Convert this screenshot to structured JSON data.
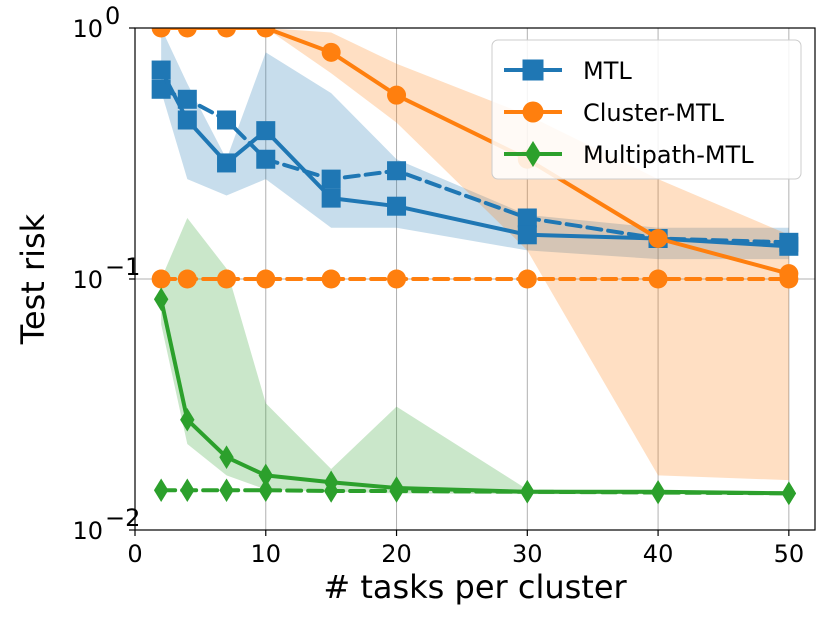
{
  "chart_data": {
    "type": "line",
    "xlabel": "# tasks per cluster",
    "ylabel": "Test risk",
    "xlim": [
      0,
      52
    ],
    "ylim": [
      0.01,
      1
    ],
    "yscale": "log",
    "xticks": [
      0,
      10,
      20,
      30,
      40,
      50
    ],
    "yticks": [
      {
        "value": 0.01,
        "base": "10",
        "exp": "−2"
      },
      {
        "value": 0.1,
        "base": "10",
        "exp": "−1"
      },
      {
        "value": 1,
        "base": "10",
        "exp": "0"
      }
    ],
    "grid": true,
    "legend_position": "top-right",
    "x": [
      2,
      4,
      7,
      10,
      15,
      20,
      30,
      40,
      50
    ],
    "series": [
      {
        "name": "MTL",
        "color": "#1f77b4",
        "marker": "square",
        "solid": [
          0.68,
          0.43,
          0.29,
          0.39,
          0.21,
          0.195,
          0.15,
          0.145,
          0.135
        ],
        "dashed": [
          0.57,
          0.52,
          0.43,
          0.3,
          0.25,
          0.27,
          0.175,
          0.145,
          0.14
        ],
        "band_upper": [
          1.0,
          0.6,
          0.3,
          0.8,
          0.55,
          0.3,
          0.18,
          0.16,
          0.16
        ],
        "band_lower": [
          0.56,
          0.25,
          0.215,
          0.25,
          0.16,
          0.16,
          0.13,
          0.12,
          0.12
        ]
      },
      {
        "name": "Cluster-MTL",
        "color": "#ff7f0e",
        "marker": "circle",
        "solid": [
          1.0,
          1.0,
          1.0,
          1.0,
          0.8,
          0.54,
          0.3,
          0.145,
          0.105
        ],
        "dashed": [
          0.1,
          0.1,
          0.1,
          0.1,
          0.1,
          0.1,
          0.1,
          0.1,
          0.1
        ],
        "band_upper": [
          1.0,
          1.0,
          1.0,
          1.0,
          0.96,
          0.72,
          0.45,
          0.25,
          0.15
        ],
        "band_lower": [
          1.0,
          1.0,
          1.0,
          1.0,
          0.66,
          0.42,
          0.13,
          0.0165,
          0.0158
        ]
      },
      {
        "name": "Multipath-MTL",
        "color": "#2ca02c",
        "marker": "diamond",
        "solid": [
          0.083,
          0.0275,
          0.0195,
          0.0165,
          0.0155,
          0.0147,
          0.0142,
          0.0142,
          0.014
        ],
        "dashed": [
          0.0144,
          0.0144,
          0.0144,
          0.0144,
          0.0143,
          0.0143,
          0.0142,
          0.0141,
          0.014
        ],
        "band_upper": [
          0.1,
          0.175,
          0.11,
          0.032,
          0.0175,
          0.031,
          0.0145,
          0.0143,
          0.0141
        ],
        "band_lower": [
          0.066,
          0.022,
          0.0165,
          0.0145,
          0.0142,
          0.014,
          0.0139,
          0.0139,
          0.0139
        ]
      }
    ]
  }
}
